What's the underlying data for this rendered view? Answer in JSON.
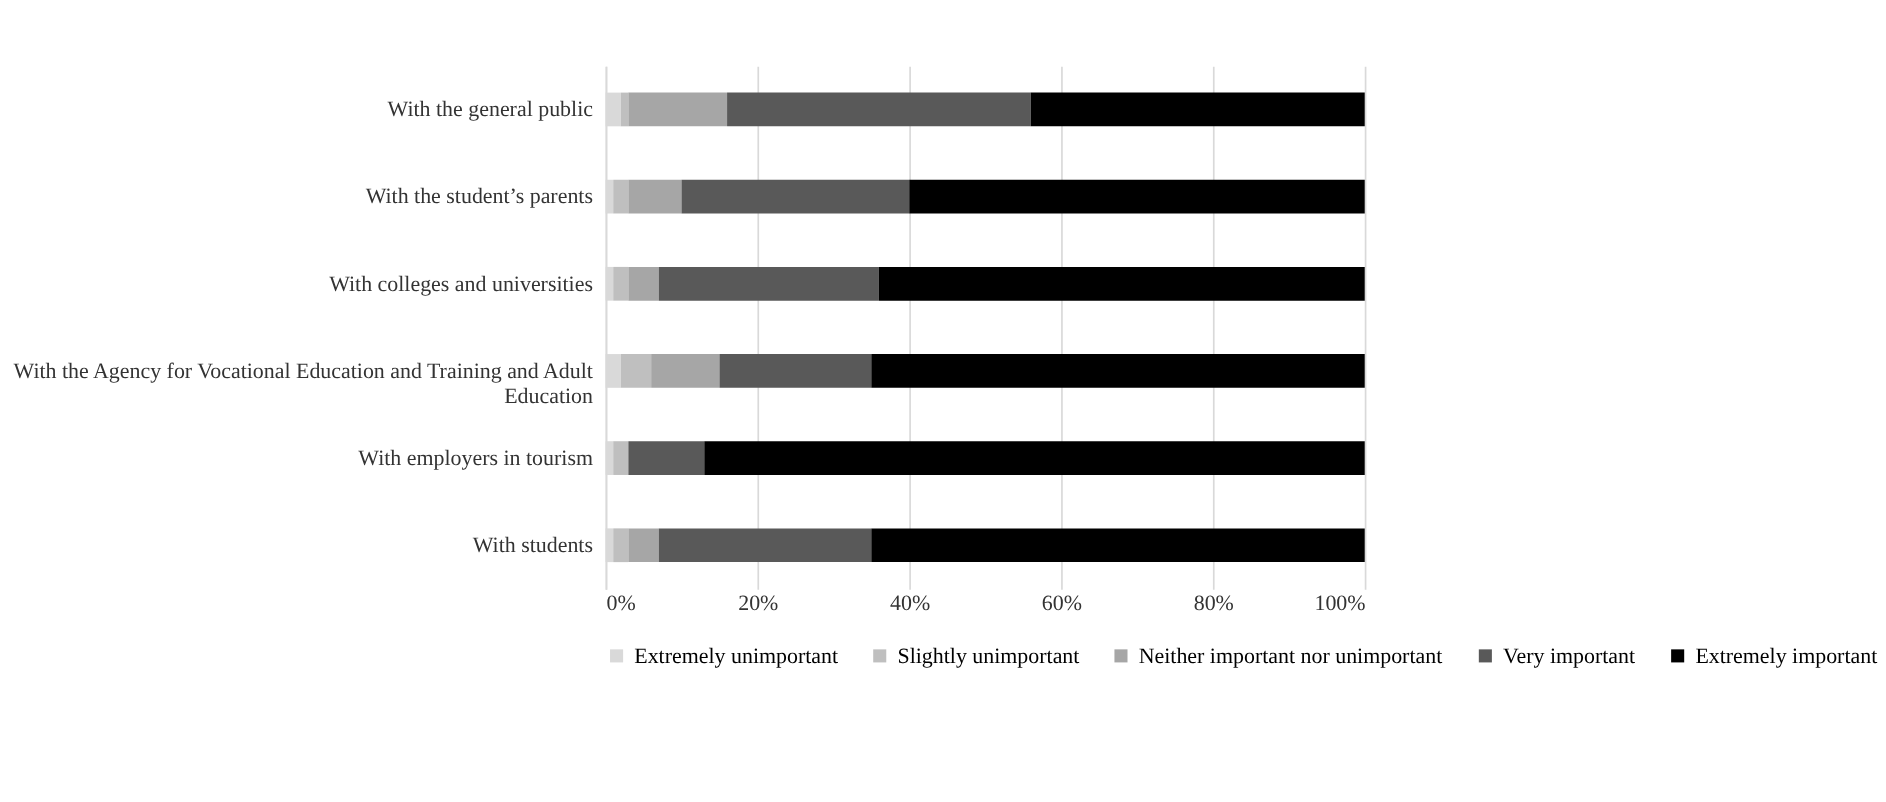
{
  "chart_data": {
    "type": "bar",
    "orientation": "horizontal",
    "stacked": true,
    "categories": [
      "With the general public",
      "With the student’s parents",
      "With colleges and universities",
      "With the Agency for Vocational Education and Training and Adult Education",
      "With employers in tourism",
      "With students"
    ],
    "series": [
      {
        "name": "Extremely unimportant",
        "color": "#d9d9d9",
        "values": [
          2,
          1,
          1,
          2,
          1,
          1
        ]
      },
      {
        "name": "Slightly unimportant",
        "color": "#bfbfbf",
        "values": [
          1,
          2,
          2,
          4,
          2,
          2
        ]
      },
      {
        "name": "Neither important nor unimportant",
        "color": "#a6a6a6",
        "values": [
          13,
          7,
          4,
          9,
          0,
          4
        ]
      },
      {
        "name": "Very important",
        "color": "#595959",
        "values": [
          40,
          30,
          29,
          20,
          10,
          28
        ]
      },
      {
        "name": "Extremely important",
        "color": "#000000",
        "values": [
          44,
          60,
          64,
          65,
          87,
          65
        ]
      }
    ],
    "xlim": [
      0,
      100
    ],
    "xticks": [
      {
        "value": 0,
        "label": "0%"
      },
      {
        "value": 20,
        "label": "20%"
      },
      {
        "value": 40,
        "label": "40%"
      },
      {
        "value": 60,
        "label": "60%"
      },
      {
        "value": 80,
        "label": "80%"
      },
      {
        "value": 100,
        "label": "100%"
      }
    ],
    "grid": "x",
    "legend": "bottom"
  }
}
